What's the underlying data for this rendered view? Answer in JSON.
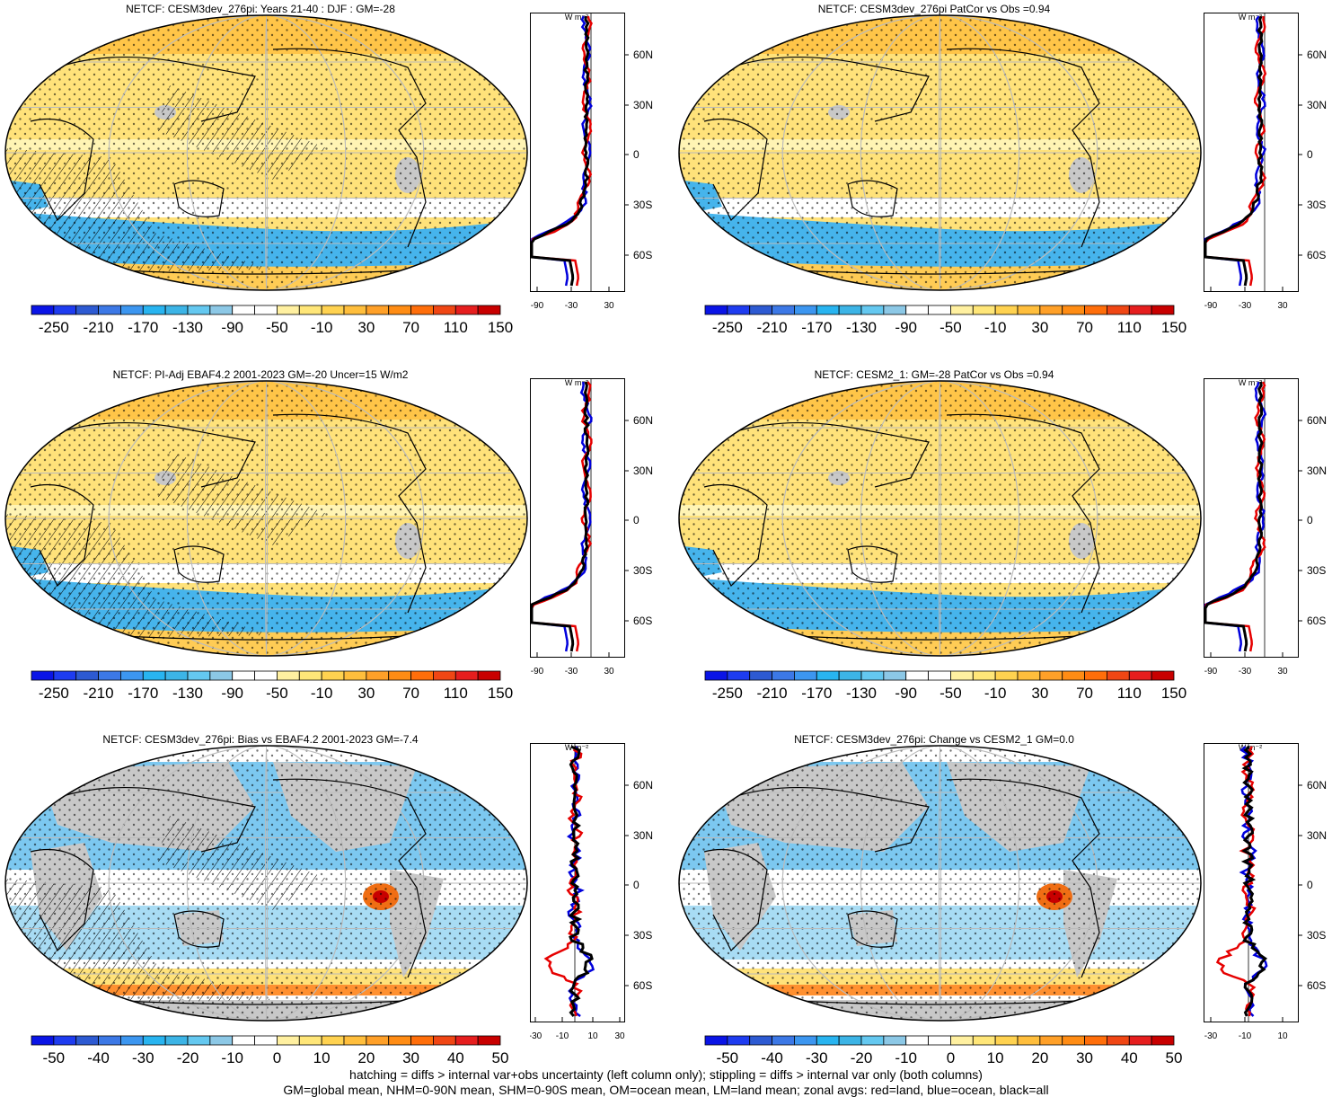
{
  "panels": [
    {
      "title": "NETCF: CESM3dev_276pi: Years 21-40 : DJF : GM=-28",
      "kind": "abs",
      "hatch": true,
      "colorbar": {
        "labels": [
          "-250",
          "-210",
          "-170",
          "-130",
          "-90",
          "-50",
          "-10",
          "30",
          "70",
          "110",
          "150"
        ]
      },
      "zonal": {
        "xticks": [
          "-90",
          "-30",
          "30"
        ],
        "unit": "W m⁻²"
      }
    },
    {
      "title": "NETCF: CESM3dev_276pi PatCor vs Obs =0.94",
      "kind": "abs",
      "hatch": false,
      "colorbar": {
        "labels": [
          "-250",
          "-210",
          "-170",
          "-130",
          "-90",
          "-50",
          "-10",
          "30",
          "70",
          "110",
          "150"
        ]
      },
      "zonal": {
        "xticks": [
          "-90",
          "-30",
          "30"
        ],
        "unit": "W m⁻²"
      }
    },
    {
      "title": "NETCF: PI-Adj EBAF4.2 2001-2023 GM=-20 Uncer=15 W/m2",
      "kind": "abs",
      "hatch": true,
      "colorbar": {
        "labels": [
          "-250",
          "-210",
          "-170",
          "-130",
          "-90",
          "-50",
          "-10",
          "30",
          "70",
          "110",
          "150"
        ]
      },
      "zonal": {
        "xticks": [
          "-90",
          "-30",
          "30"
        ],
        "unit": "W m⁻²"
      }
    },
    {
      "title": "NETCF: CESM2_1: GM=-28 PatCor vs Obs =0.94",
      "kind": "abs",
      "hatch": false,
      "colorbar": {
        "labels": [
          "-250",
          "-210",
          "-170",
          "-130",
          "-90",
          "-50",
          "-10",
          "30",
          "70",
          "110",
          "150"
        ]
      },
      "zonal": {
        "xticks": [
          "-90",
          "-30",
          "30"
        ],
        "unit": "W m⁻²"
      }
    },
    {
      "title": "NETCF: CESM3dev_276pi: Bias vs EBAF4.2 2001-2023 GM=-7.4",
      "kind": "diff",
      "hatch": true,
      "colorbar": {
        "labels": [
          "-50",
          "-40",
          "-30",
          "-20",
          "-10",
          "0",
          "10",
          "20",
          "30",
          "40",
          "50"
        ]
      },
      "zonal": {
        "xticks": [
          "-30",
          "-10",
          "10",
          "30"
        ],
        "unit": "W m⁻²"
      }
    },
    {
      "title": "NETCF: CESM3dev_276pi: Change vs CESM2_1 GM=0.0",
      "kind": "diff",
      "hatch": false,
      "colorbar": {
        "labels": [
          "-50",
          "-40",
          "-30",
          "-20",
          "-10",
          "0",
          "10",
          "20",
          "30",
          "40",
          "50"
        ]
      },
      "zonal": {
        "xticks": [
          "-30",
          "-10",
          "10"
        ],
        "unit": "W m⁻²"
      }
    }
  ],
  "lat_labels": [
    "60N",
    "30N",
    "0",
    "30S",
    "60S"
  ],
  "palette": [
    "#0a14e6",
    "#1e3cf0",
    "#2d5ad2",
    "#3c78e6",
    "#3c96f0",
    "#28b4f0",
    "#3cb4e6",
    "#64c8f0",
    "#8cc8e6",
    "#ffffff",
    "#ffffff",
    "#fff0a0",
    "#ffe678",
    "#ffd250",
    "#ffbe3c",
    "#ffa028",
    "#ff8c14",
    "#ff6e0a",
    "#f04614",
    "#e61e1e",
    "#c80000"
  ],
  "colors": {
    "land": "#c8c8c8",
    "ocean_blue": "#46b4ec",
    "yellow": "#ffe27a",
    "orange": "#ffbe3c",
    "line_land": "#e60000",
    "line_ocean": "#0000dc",
    "line_all": "#000000"
  },
  "footer": {
    "line1": "hatching = diffs > internal var+obs uncertainty (left column only); stippling = diffs > internal var only (both columns)",
    "line2": "GM=global mean, NHM=0-90N mean, SHM=0-90S mean, OM=ocean mean, LM=land mean; zonal avgs: red=land, blue=ocean, black=all"
  }
}
